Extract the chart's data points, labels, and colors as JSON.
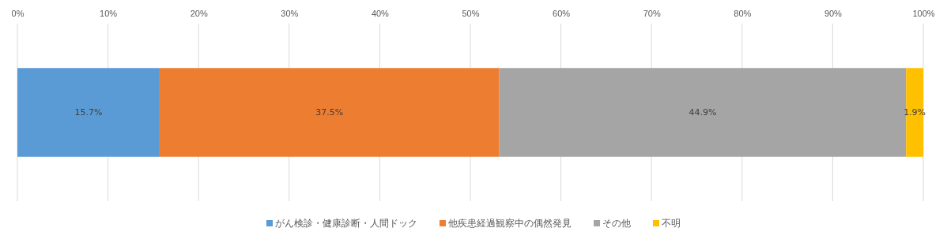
{
  "chart_data": {
    "type": "bar",
    "orientation": "horizontal",
    "stacked": true,
    "categories": [
      null
    ],
    "series": [
      {
        "name": "がん検診・健康診断・人間ドック",
        "color": "#5b9bd5",
        "values": [
          15.7
        ]
      },
      {
        "name": "他疾患経過観察中の偶然発見",
        "color": "#ed7d31",
        "values": [
          37.5
        ]
      },
      {
        "name": "その他",
        "color": "#a5a5a5",
        "values": [
          44.9
        ]
      },
      {
        "name": "不明",
        "color": "#ffc000",
        "values": [
          1.9
        ]
      }
    ],
    "xlim": [
      0,
      100
    ],
    "xticks": [
      {
        "value": 0,
        "label": "0%"
      },
      {
        "value": 10,
        "label": "10%"
      },
      {
        "value": 20,
        "label": "20%"
      },
      {
        "value": 30,
        "label": "30%"
      },
      {
        "value": 40,
        "label": "40%"
      },
      {
        "value": 50,
        "label": "50%"
      },
      {
        "value": 60,
        "label": "60%"
      },
      {
        "value": 70,
        "label": "70%"
      },
      {
        "value": 80,
        "label": "80%"
      },
      {
        "value": 90,
        "label": "90%"
      },
      {
        "value": 100,
        "label": "100%"
      }
    ],
    "value_labels": [
      "15.7%",
      "37.5%",
      "44.9%",
      "1.9%"
    ],
    "grid": "x",
    "legend": "bottom"
  }
}
